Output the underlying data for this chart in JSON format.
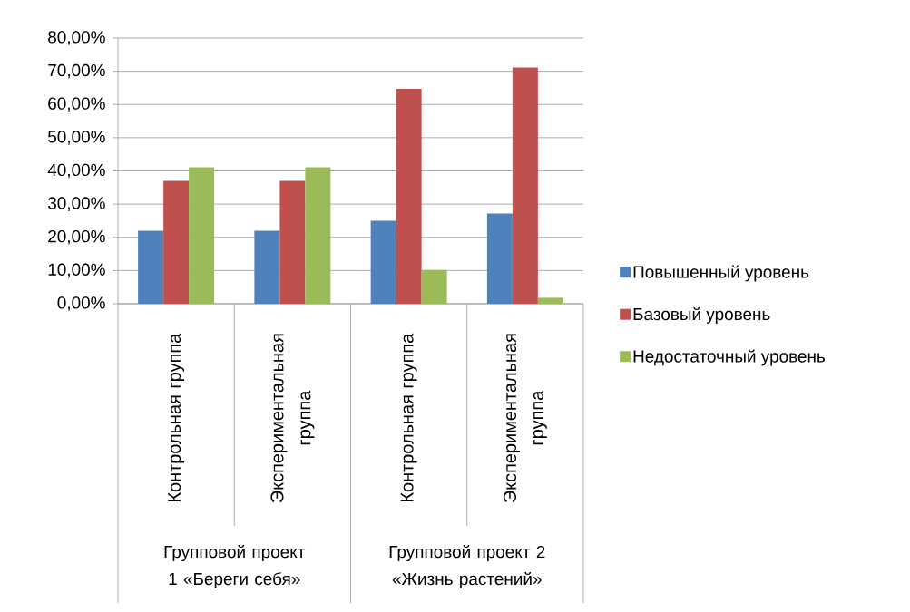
{
  "chart_data": {
    "type": "bar",
    "categories": [
      "Контрольная группа",
      "Экспериментальная группа",
      "Контрольная группа",
      "Экспериментальная группа"
    ],
    "series": [
      {
        "name": "Повышенный уровень",
        "color": "#4f81bd",
        "values": [
          22,
          22,
          25,
          27.2
        ]
      },
      {
        "name": "Базовый уровень",
        "color": "#c0504d",
        "values": [
          37,
          37,
          64.7,
          71.1
        ]
      },
      {
        "name": "Недостаточный уровень",
        "color": "#9bbb59",
        "values": [
          41.1,
          41.1,
          10.2,
          1.8
        ]
      }
    ],
    "ylim": [
      0,
      80
    ],
    "yticks": [
      {
        "value": 0,
        "label": "0,00%"
      },
      {
        "value": 10,
        "label": "10,00%"
      },
      {
        "value": 20,
        "label": "20,00%"
      },
      {
        "value": 30,
        "label": "30,00%"
      },
      {
        "value": 40,
        "label": "40,00%"
      },
      {
        "value": 50,
        "label": "50,00%"
      },
      {
        "value": 60,
        "label": "60,00%"
      },
      {
        "value": 70,
        "label": "70,00%"
      },
      {
        "value": 80,
        "label": "80,00%"
      }
    ],
    "grid": "y",
    "legend": "right",
    "annotations": [
      "Групповой проект 1 «Береги себя»",
      "Групповой проект 2 «Жизнь растений»"
    ]
  }
}
